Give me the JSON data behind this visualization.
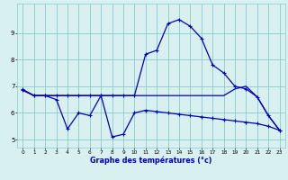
{
  "xlabel": "Graphe des températures (°c)",
  "xlim": [
    -0.5,
    23.5
  ],
  "ylim": [
    4.7,
    10.1
  ],
  "xticks": [
    0,
    1,
    2,
    3,
    4,
    5,
    6,
    7,
    8,
    9,
    10,
    11,
    12,
    13,
    14,
    15,
    16,
    17,
    18,
    19,
    20,
    21,
    22,
    23
  ],
  "yticks": [
    5,
    6,
    7,
    8,
    9
  ],
  "bg_color": "#d8f0f0",
  "line_color": "#0000bb",
  "grid_color": "#88cccc",
  "line1_x": [
    0,
    1,
    2,
    3,
    4,
    5,
    6,
    7,
    8,
    9,
    10,
    11,
    12,
    13,
    14,
    15,
    16,
    17,
    18,
    19,
    20,
    21,
    22,
    23
  ],
  "line1_y": [
    6.88,
    6.65,
    6.65,
    6.65,
    6.65,
    6.65,
    6.65,
    6.65,
    6.65,
    6.65,
    6.65,
    8.2,
    8.35,
    9.35,
    9.5,
    9.25,
    8.8,
    7.8,
    7.5,
    7.0,
    6.9,
    6.6,
    5.9,
    5.35
  ],
  "line2_x": [
    0,
    1,
    2,
    3,
    4,
    5,
    6,
    7,
    8,
    9,
    10,
    11,
    12,
    13,
    14,
    15,
    16,
    17,
    18,
    19,
    20,
    21,
    22,
    23
  ],
  "line2_y": [
    6.85,
    6.65,
    6.65,
    6.65,
    6.65,
    6.65,
    6.65,
    6.65,
    6.65,
    6.65,
    6.65,
    6.65,
    6.65,
    6.65,
    6.65,
    6.65,
    6.65,
    6.65,
    6.65,
    6.9,
    7.0,
    6.6,
    5.9,
    5.35
  ],
  "line3_x": [
    0,
    1,
    2,
    3,
    4,
    5,
    6,
    7,
    8,
    9,
    10,
    11,
    12,
    13,
    14,
    15,
    16,
    17,
    18,
    19,
    20,
    21,
    22,
    23
  ],
  "line3_y": [
    6.85,
    6.65,
    6.65,
    6.5,
    5.4,
    6.0,
    5.9,
    6.65,
    5.1,
    5.2,
    6.0,
    6.1,
    6.05,
    6.0,
    5.95,
    5.9,
    5.85,
    5.8,
    5.75,
    5.7,
    5.65,
    5.6,
    5.5,
    5.35
  ]
}
